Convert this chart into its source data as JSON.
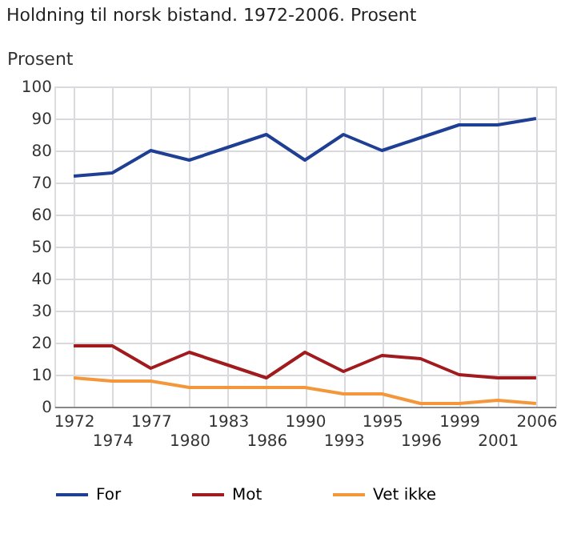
{
  "chart_data": {
    "type": "line",
    "title": "Holdning til norsk bistand. 1972-2006. Prosent",
    "ylabel": "Prosent",
    "categories": [
      "1972",
      "1974",
      "1977",
      "1980",
      "1983",
      "1986",
      "1990",
      "1993",
      "1995",
      "1996",
      "1999",
      "2001",
      "2006"
    ],
    "series": [
      {
        "name": "For",
        "color": "#1f3f94",
        "values": [
          72,
          73,
          80,
          77,
          81,
          85,
          77,
          85,
          80,
          84,
          88,
          88,
          90
        ]
      },
      {
        "name": "Mot",
        "color": "#a01a1e",
        "values": [
          19,
          19,
          12,
          17,
          13,
          9,
          17,
          11,
          16,
          15,
          10,
          9,
          9
        ]
      },
      {
        "name": "Vet ikke",
        "color": "#f4963a",
        "values": [
          9,
          8,
          8,
          6,
          6,
          6,
          6,
          4,
          4,
          1,
          1,
          2,
          1
        ]
      }
    ],
    "ylim": [
      0,
      100
    ],
    "yticks": [
      0,
      10,
      20,
      30,
      40,
      50,
      60,
      70,
      80,
      90,
      100
    ],
    "grid": true,
    "legend": "bottom",
    "marker": "none",
    "line_style": "solid"
  }
}
